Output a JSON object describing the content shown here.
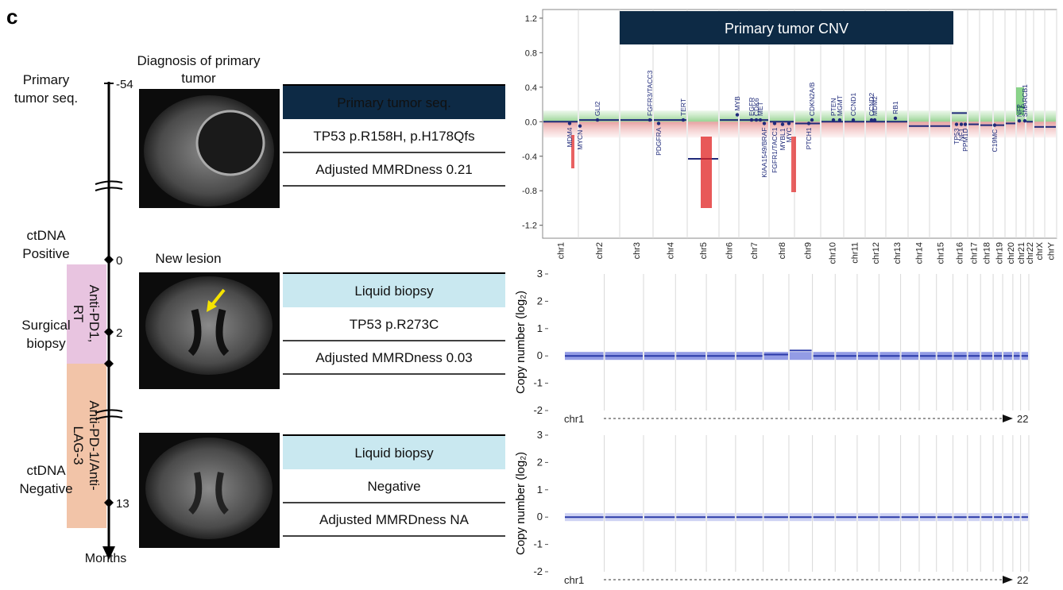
{
  "panel_label": "c",
  "timeline": {
    "ticks": [
      -54,
      0,
      2,
      13
    ],
    "unit": "Months"
  },
  "left_labels": [
    {
      "lines": [
        "Primary",
        "tumor seq."
      ]
    },
    {
      "lines": [
        "ctDNA",
        "Positive"
      ]
    },
    {
      "lines": [
        "Surgical",
        "biopsy"
      ]
    },
    {
      "lines": [
        "ctDNA",
        "Negative"
      ]
    }
  ],
  "therapies": [
    {
      "lines": [
        "Anti-PD1,",
        "RT"
      ]
    },
    {
      "lines": [
        "Anti-PD-1/Anti-",
        "LAG-3"
      ]
    }
  ],
  "image_captions": [
    {
      "lines": [
        "Diagnosis of primary",
        "tumor"
      ]
    },
    {
      "lines": [
        "New lesion"
      ]
    }
  ],
  "tables": [
    {
      "header": "Primary tumor seq.",
      "rows": [
        "TP53 p.R158H, p.H178Qfs",
        "Adjusted MMRDness  0.21"
      ]
    },
    {
      "header": "Liquid biopsy",
      "rows": [
        "TP53 p.R273C",
        "Adjusted MMRDness  0.03"
      ]
    },
    {
      "header": "Liquid biopsy",
      "rows": [
        "Negative",
        "Adjusted MMRDness  NA"
      ]
    }
  ],
  "chart_data": [
    {
      "type": "segment",
      "title": "Primary tumor CNV",
      "categories": [
        "chr1",
        "chr2",
        "chr3",
        "chr4",
        "chr5",
        "chr6",
        "chr7",
        "chr8",
        "chr9",
        "chr10",
        "chr11",
        "chr12",
        "chr13",
        "chr14",
        "chr15",
        "chr16",
        "chr17",
        "chr18",
        "chr19",
        "chr20",
        "chr21",
        "chr22",
        "chrX",
        "chrY"
      ],
      "values": [
        0,
        0.02,
        0.02,
        0.02,
        -0.43,
        0.02,
        0.02,
        0,
        -0.02,
        0,
        0,
        0,
        0,
        -0.05,
        -0.05,
        0.1,
        -0.03,
        -0.04,
        -0.04,
        -0.02,
        0.17,
        0,
        -0.06,
        -0.06
      ],
      "color": "#1f2a7a",
      "ylim": [
        -1.35,
        1.3
      ],
      "yticks": [
        1.2,
        0.8,
        0.4,
        {
          "value": 0,
          "label": "0.0"
        },
        -0.4,
        -0.8,
        -1.2
      ],
      "annotations": [
        {
          "label": "MDM4",
          "value": -0.02
        },
        {
          "label": "MYCN",
          "value": -0.05
        },
        {
          "label": "GLI2",
          "value": 0.02
        },
        {
          "label": "FGFR3/TACC3",
          "value": 0.02
        },
        {
          "label": "PDGFRA",
          "value": -0.02
        },
        {
          "label": "TERT",
          "value": 0.02
        },
        {
          "label": "MYB",
          "value": 0.08
        },
        {
          "label": "EGFR",
          "value": 0.02
        },
        {
          "label": "CDK6",
          "value": 0.02
        },
        {
          "label": "MET",
          "value": 0.02
        },
        {
          "label": "KIAA1549/BRAF",
          "value": -0.02
        },
        {
          "label": "FGFR1/TACC1",
          "value": -0.02
        },
        {
          "label": "MYBL1",
          "value": -0.03
        },
        {
          "label": "MYC",
          "value": -0.02
        },
        {
          "label": "CDKN2A/B",
          "value": 0.02
        },
        {
          "label": "PTCH1",
          "value": -0.02
        },
        {
          "label": "PTEN",
          "value": 0.02
        },
        {
          "label": "MGMT",
          "value": 0.02
        },
        {
          "label": "CCND1",
          "value": 0.02
        },
        {
          "label": "CCND2",
          "value": 0.02
        },
        {
          "label": "MDM2",
          "value": 0.02
        },
        {
          "label": "RB1",
          "value": 0.04
        },
        {
          "label": "TP53",
          "value": -0.03
        },
        {
          "label": "NF1",
          "value": -0.03
        },
        {
          "label": "PPM1D",
          "value": -0.03
        },
        {
          "label": "C19MC",
          "value": -0.04
        },
        {
          "label": "NF2",
          "value": 0.01
        },
        {
          "label": "SMARCB1",
          "value": 0.01
        }
      ]
    },
    {
      "type": "segment",
      "y_label": "Copy number (log₂)",
      "x_labels": [
        "chr1",
        "22"
      ],
      "values": [
        0,
        0,
        0,
        0,
        0,
        0,
        0.05,
        0.2,
        0,
        0,
        0,
        0,
        0,
        0,
        0,
        0,
        0,
        0,
        0,
        0,
        0,
        0
      ],
      "color": "#2b3aa8",
      "ylim": [
        -2,
        3
      ],
      "yticks": [
        3,
        2,
        1,
        0,
        -1,
        -2
      ]
    },
    {
      "type": "segment",
      "y_label": "Copy number (log₂)",
      "x_labels": [
        "chr1",
        "22"
      ],
      "values": [
        0,
        0,
        0,
        0,
        0,
        0,
        0,
        0,
        0,
        0,
        0,
        0,
        0,
        0,
        0,
        0,
        0,
        0,
        0,
        0,
        0,
        0
      ],
      "color": "#2b3aa8",
      "ylim": [
        -2,
        3
      ],
      "yticks": [
        3,
        2,
        1,
        0,
        -1,
        -2
      ]
    }
  ]
}
